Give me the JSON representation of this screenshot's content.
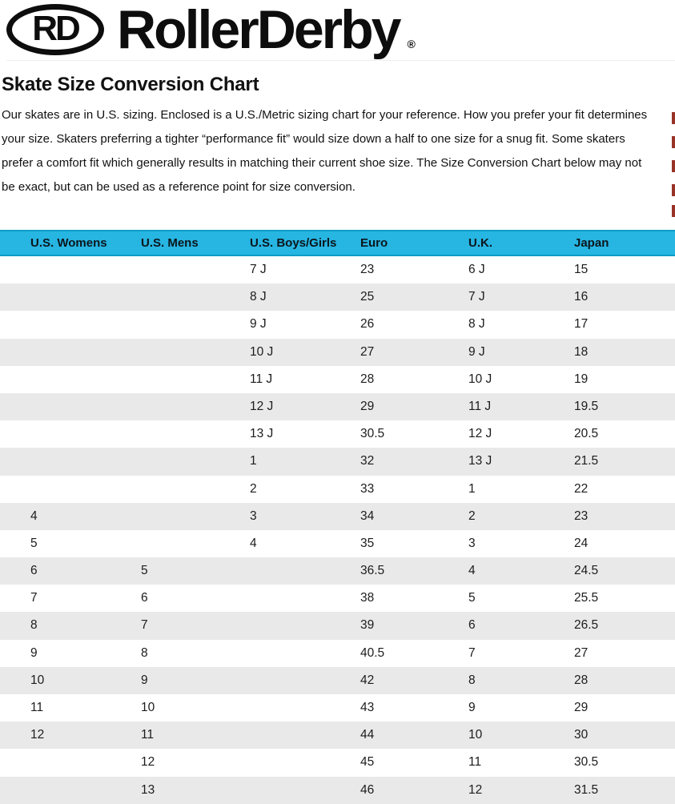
{
  "logo": {
    "monogram": "RD",
    "brand": "RollerDerby",
    "registered": "®"
  },
  "heading": "Skate Size Conversion Chart",
  "intro": "Our skates are in U.S. sizing. Enclosed is a U.S./Metric sizing chart for your reference. How you prefer your fit determines your size. Skaters preferring a tighter “performance fit” would size down a half to one size for a snug fit. Some skaters prefer a comfort fit which generally results in matching their current shoe size. The Size Conversion Chart below may not be exact, but can be used as a reference point for size conversion.",
  "table": {
    "columns": [
      "U.S. Womens",
      "U.S. Mens",
      "U.S. Boys/Girls",
      "Euro",
      "U.K.",
      "Japan"
    ],
    "rows": [
      [
        "",
        "",
        "7 J",
        "23",
        "6 J",
        "15"
      ],
      [
        "",
        "",
        "8 J",
        "25",
        "7 J",
        "16"
      ],
      [
        "",
        "",
        "9 J",
        "26",
        "8 J",
        "17"
      ],
      [
        "",
        "",
        "10 J",
        "27",
        "9 J",
        "18"
      ],
      [
        "",
        "",
        "11 J",
        "28",
        "10 J",
        "19"
      ],
      [
        "",
        "",
        "12 J",
        "29",
        "11 J",
        "19.5"
      ],
      [
        "",
        "",
        "13 J",
        "30.5",
        "12 J",
        "20.5"
      ],
      [
        "",
        "",
        "1",
        "32",
        "13 J",
        "21.5"
      ],
      [
        "",
        "",
        "2",
        "33",
        "1",
        "22"
      ],
      [
        "4",
        "",
        "3",
        "34",
        "2",
        "23"
      ],
      [
        "5",
        "",
        "4",
        "35",
        "3",
        "24"
      ],
      [
        "6",
        "5",
        "",
        "36.5",
        "4",
        "24.5"
      ],
      [
        "7",
        "6",
        "",
        "38",
        "5",
        "25.5"
      ],
      [
        "8",
        "7",
        "",
        "39",
        "6",
        "26.5"
      ],
      [
        "9",
        "8",
        "",
        "40.5",
        "7",
        "27"
      ],
      [
        "10",
        "9",
        "",
        "42",
        "8",
        "28"
      ],
      [
        "11",
        "10",
        "",
        "43",
        "9",
        "29"
      ],
      [
        "12",
        "11",
        "",
        "44",
        "10",
        "30"
      ],
      [
        "",
        "12",
        "",
        "45",
        "11",
        "30.5"
      ],
      [
        "",
        "13",
        "",
        "46",
        "12",
        "31.5"
      ]
    ]
  },
  "colors": {
    "header_bg": "#27b5e2",
    "header_line": "#0e9cc8",
    "row_alt": "#e9e9e9",
    "accent_red": "#993227",
    "logo_black": "#0d0d0d"
  }
}
